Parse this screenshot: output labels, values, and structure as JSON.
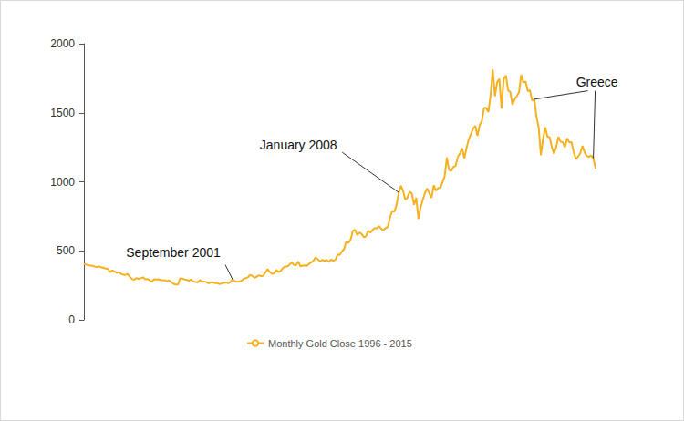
{
  "chart_data": {
    "type": "line",
    "categories": [
      null,
      null,
      null,
      null,
      null,
      null,
      null,
      null,
      null,
      null,
      null,
      null,
      null,
      null,
      null,
      null,
      null,
      null,
      null,
      null,
      null,
      null,
      null,
      null,
      null,
      null,
      null,
      null,
      null,
      null,
      null,
      null,
      null,
      null,
      null,
      null,
      null,
      null,
      null,
      null,
      null,
      null,
      null,
      null,
      null,
      null,
      null,
      null,
      null,
      null,
      null,
      null,
      null,
      null,
      null,
      null,
      null,
      null,
      null,
      null,
      null,
      null,
      null,
      null,
      null,
      null,
      null,
      null,
      null,
      null,
      null,
      null,
      null,
      null,
      null,
      null,
      null,
      null,
      null,
      null,
      null,
      null,
      null,
      null,
      null,
      null,
      null,
      null,
      null,
      null,
      null,
      null,
      null,
      null,
      null,
      null,
      null,
      null,
      null,
      null,
      null,
      null,
      null,
      null,
      null,
      null,
      null,
      null,
      null,
      null,
      null,
      null,
      null,
      null,
      null,
      null,
      null,
      null,
      null,
      null,
      null,
      null,
      null,
      null,
      null,
      null,
      null,
      null,
      null,
      null,
      null,
      null,
      null,
      null,
      null,
      null,
      null,
      null,
      null,
      null,
      null,
      null,
      null,
      null,
      null,
      null,
      null,
      null,
      null,
      null,
      null,
      null,
      null,
      null,
      null,
      null,
      null,
      null,
      null,
      null,
      null,
      null,
      null,
      null,
      null,
      null,
      null,
      null,
      null,
      null,
      null,
      null,
      null,
      null,
      null,
      null,
      null,
      null,
      null,
      null,
      null,
      null,
      null,
      null,
      null,
      null,
      null,
      null,
      null,
      null,
      null,
      null,
      null,
      null,
      null,
      null,
      null,
      null,
      null,
      null,
      null,
      null,
      null,
      null,
      null,
      null,
      null,
      null,
      null,
      null,
      null,
      null,
      null,
      null,
      null,
      null,
      null,
      null,
      null,
      null,
      null,
      null,
      null,
      null,
      null,
      null,
      null,
      null,
      null,
      null,
      null,
      null,
      null,
      null,
      null
    ],
    "series": [
      {
        "name": "Monthly Gold Close 1996 - 2015",
        "color": "#f5b120",
        "marker": "circle",
        "values": [
          405,
          400,
          396,
          392,
          391,
          385,
          383,
          387,
          379,
          378,
          371,
          369,
          345,
          358,
          349,
          340,
          345,
          334,
          326,
          325,
          332,
          311,
          296,
          290,
          302,
          297,
          301,
          308,
          293,
          296,
          288,
          273,
          293,
          292,
          294,
          288,
          287,
          287,
          279,
          286,
          272,
          261,
          255,
          255,
          299,
          299,
          292,
          290,
          283,
          293,
          278,
          274,
          272,
          288,
          276,
          278,
          273,
          264,
          270,
          272,
          265,
          267,
          258,
          263,
          268,
          270,
          265,
          273,
          293,
          279,
          275,
          277,
          282,
          296,
          302,
          308,
          326,
          318,
          305,
          312,
          323,
          317,
          318,
          342,
          367,
          347,
          334,
          336,
          361,
          346,
          354,
          375,
          388,
          386,
          398,
          417,
          399,
          395,
          423,
          388,
          393,
          395,
          391,
          407,
          416,
          428,
          453,
          438,
          422,
          435,
          427,
          435,
          418,
          437,
          429,
          433,
          473,
          470,
          495,
          513,
          568,
          556,
          582,
          644,
          653,
          613,
          633,
          623,
          599,
          604,
          646,
          632,
          650,
          665,
          662,
          679,
          659,
          650,
          665,
          672,
          743,
          789,
          783,
          834,
          923,
          971,
          933,
          871,
          885,
          930,
          913,
          833,
          884,
          730,
          815,
          870,
          919,
          952,
          916,
          884,
          975,
          934,
          955,
          955,
          996,
          1040,
          1175,
          1087,
          1078,
          1108,
          1115,
          1179,
          1207,
          1244,
          1169,
          1246,
          1307,
          1346,
          1386,
          1405,
          1333,
          1411,
          1439,
          1535,
          1536,
          1505,
          1628,
          1813,
          1620,
          1722,
          1746,
          1531,
          1744,
          1770,
          1662,
          1651,
          1558,
          1598,
          1622,
          1648,
          1776,
          1720,
          1726,
          1657,
          1664,
          1588,
          1598,
          1469,
          1394,
          1192,
          1314,
          1394,
          1326,
          1324,
          1253,
          1204,
          1251,
          1326,
          1291,
          1288,
          1250,
          1315,
          1285,
          1287,
          1216,
          1164,
          1182,
          1206,
          1260,
          1214,
          1187,
          1180,
          1191,
          1171,
          1095
        ]
      }
    ],
    "ylim": [
      0,
      2000
    ],
    "yticks": [
      0,
      500,
      1000,
      1500,
      2000
    ],
    "grid": false,
    "legend": "bottom",
    "tick_labels": "y",
    "annotations": [
      {
        "text": "September 2001",
        "at": [
          68
        ]
      },
      {
        "text": "January 2008",
        "at": [
          144
        ]
      },
      {
        "text": "Greece",
        "at": [
          206,
          233
        ]
      }
    ]
  }
}
